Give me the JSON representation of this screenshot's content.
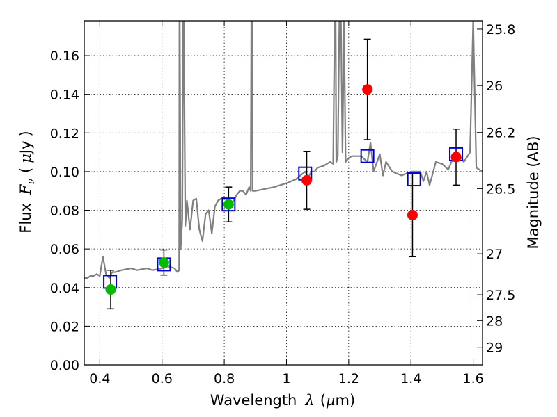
{
  "chart_data": {
    "type": "scatter",
    "xlabel": {
      "main": "Wavelength",
      "symbol": "λ",
      "unit_open": "(",
      "unit_mu": "μ",
      "unit_rest": "m)"
    },
    "ylabel": {
      "main": "Flux",
      "symbol": "F",
      "sub": "ν",
      "unit_open": "(",
      "unit_mu": "μ",
      "unit_rest": "Jy",
      "unit_close": ")"
    },
    "y2label": "Magnitude (AB)",
    "xlim": [
      0.35,
      1.63
    ],
    "ylim": [
      0.0,
      0.178
    ],
    "grid": true,
    "x_ticks": [
      {
        "value": 0.4,
        "label": "0.4"
      },
      {
        "value": 0.6,
        "label": "0.6"
      },
      {
        "value": 0.8,
        "label": "0.8"
      },
      {
        "value": 1.0,
        "label": "1"
      },
      {
        "value": 1.2,
        "label": "1.2"
      },
      {
        "value": 1.4,
        "label": "1.4"
      },
      {
        "value": 1.6,
        "label": "1.6"
      }
    ],
    "y_ticks": [
      {
        "value": 0.0,
        "label": "0.00"
      },
      {
        "value": 0.02,
        "label": "0.02"
      },
      {
        "value": 0.04,
        "label": "0.04"
      },
      {
        "value": 0.06,
        "label": "0.06"
      },
      {
        "value": 0.08,
        "label": "0.08"
      },
      {
        "value": 0.1,
        "label": "0.10"
      },
      {
        "value": 0.12,
        "label": "0.12"
      },
      {
        "value": 0.14,
        "label": "0.14"
      },
      {
        "value": 0.16,
        "label": "0.16"
      }
    ],
    "y2_ticks": [
      {
        "flux": 0.1737,
        "label": "25.8"
      },
      {
        "flux": 0.1445,
        "label": "26"
      },
      {
        "flux": 0.1202,
        "label": "26.2"
      },
      {
        "flux": 0.0912,
        "label": "26.5"
      },
      {
        "flux": 0.0575,
        "label": "27"
      },
      {
        "flux": 0.0363,
        "label": "27.5"
      },
      {
        "flux": 0.0229,
        "label": "28"
      },
      {
        "flux": 0.0091,
        "label": "29"
      }
    ],
    "model_spectrum": {
      "color": "#808080",
      "x": [
        0.35,
        0.36,
        0.37,
        0.38,
        0.39,
        0.4,
        0.41,
        0.42,
        0.425,
        0.43,
        0.44,
        0.45,
        0.47,
        0.5,
        0.52,
        0.55,
        0.57,
        0.6,
        0.62,
        0.64,
        0.65,
        0.655,
        0.656,
        0.657,
        0.66,
        0.665,
        0.668,
        0.67,
        0.675,
        0.68,
        0.69,
        0.7,
        0.71,
        0.72,
        0.73,
        0.74,
        0.75,
        0.76,
        0.77,
        0.78,
        0.8,
        0.82,
        0.84,
        0.85,
        0.86,
        0.87,
        0.88,
        0.885,
        0.887,
        0.889,
        0.891,
        0.895,
        0.9,
        0.93,
        0.96,
        1.0,
        1.03,
        1.06,
        1.07,
        1.08,
        1.09,
        1.1,
        1.12,
        1.14,
        1.15,
        1.155,
        1.158,
        1.16,
        1.165,
        1.17,
        1.175,
        1.18,
        1.185,
        1.19,
        1.2,
        1.21,
        1.24,
        1.26,
        1.27,
        1.28,
        1.3,
        1.31,
        1.32,
        1.34,
        1.37,
        1.4,
        1.43,
        1.44,
        1.45,
        1.46,
        1.48,
        1.5,
        1.52,
        1.53,
        1.55,
        1.57,
        1.59,
        1.6,
        1.61,
        1.63
      ],
      "y": [
        0.045,
        0.045,
        0.046,
        0.046,
        0.047,
        0.046,
        0.056,
        0.047,
        0.046,
        0.045,
        0.048,
        0.048,
        0.049,
        0.05,
        0.049,
        0.05,
        0.049,
        0.05,
        0.051,
        0.05,
        0.048,
        0.049,
        0.178,
        0.178,
        0.06,
        0.075,
        0.178,
        0.178,
        0.072,
        0.085,
        0.07,
        0.085,
        0.086,
        0.07,
        0.064,
        0.078,
        0.08,
        0.068,
        0.082,
        0.085,
        0.087,
        0.082,
        0.088,
        0.09,
        0.09,
        0.088,
        0.092,
        0.09,
        0.178,
        0.178,
        0.09,
        0.09,
        0.09,
        0.091,
        0.092,
        0.094,
        0.096,
        0.1,
        0.097,
        0.1,
        0.1,
        0.102,
        0.103,
        0.105,
        0.104,
        0.178,
        0.178,
        0.105,
        0.108,
        0.178,
        0.178,
        0.11,
        0.178,
        0.105,
        0.107,
        0.108,
        0.108,
        0.105,
        0.115,
        0.1,
        0.109,
        0.098,
        0.105,
        0.1,
        0.098,
        0.1,
        0.1,
        0.095,
        0.1,
        0.093,
        0.105,
        0.104,
        0.101,
        0.105,
        0.11,
        0.105,
        0.11,
        0.178,
        0.102,
        0.1
      ]
    },
    "series": [
      {
        "name": "",
        "marker": "square",
        "color": "#0000cc",
        "points": [
          {
            "x": 0.433,
            "y": 0.043
          },
          {
            "x": 0.606,
            "y": 0.052
          },
          {
            "x": 0.814,
            "y": 0.083
          },
          {
            "x": 1.06,
            "y": 0.099
          },
          {
            "x": 1.26,
            "y": 0.108
          },
          {
            "x": 1.41,
            "y": 0.096
          },
          {
            "x": 1.545,
            "y": 0.109
          }
        ]
      },
      {
        "name": "",
        "marker": "circle",
        "color": "#00bb00",
        "points": [
          {
            "x": 0.435,
            "y": 0.039,
            "err": 0.01
          },
          {
            "x": 0.606,
            "y": 0.053,
            "err": 0.0065
          },
          {
            "x": 0.814,
            "y": 0.083,
            "err": 0.009
          }
        ]
      },
      {
        "name": "",
        "marker": "circle",
        "color": "#ff0000",
        "points": [
          {
            "x": 1.065,
            "y": 0.0955,
            "err": 0.015
          },
          {
            "x": 1.26,
            "y": 0.1425,
            "err": 0.026
          },
          {
            "x": 1.405,
            "y": 0.0775,
            "err": 0.0215
          },
          {
            "x": 1.545,
            "y": 0.1075,
            "err": 0.0145
          }
        ]
      }
    ]
  }
}
